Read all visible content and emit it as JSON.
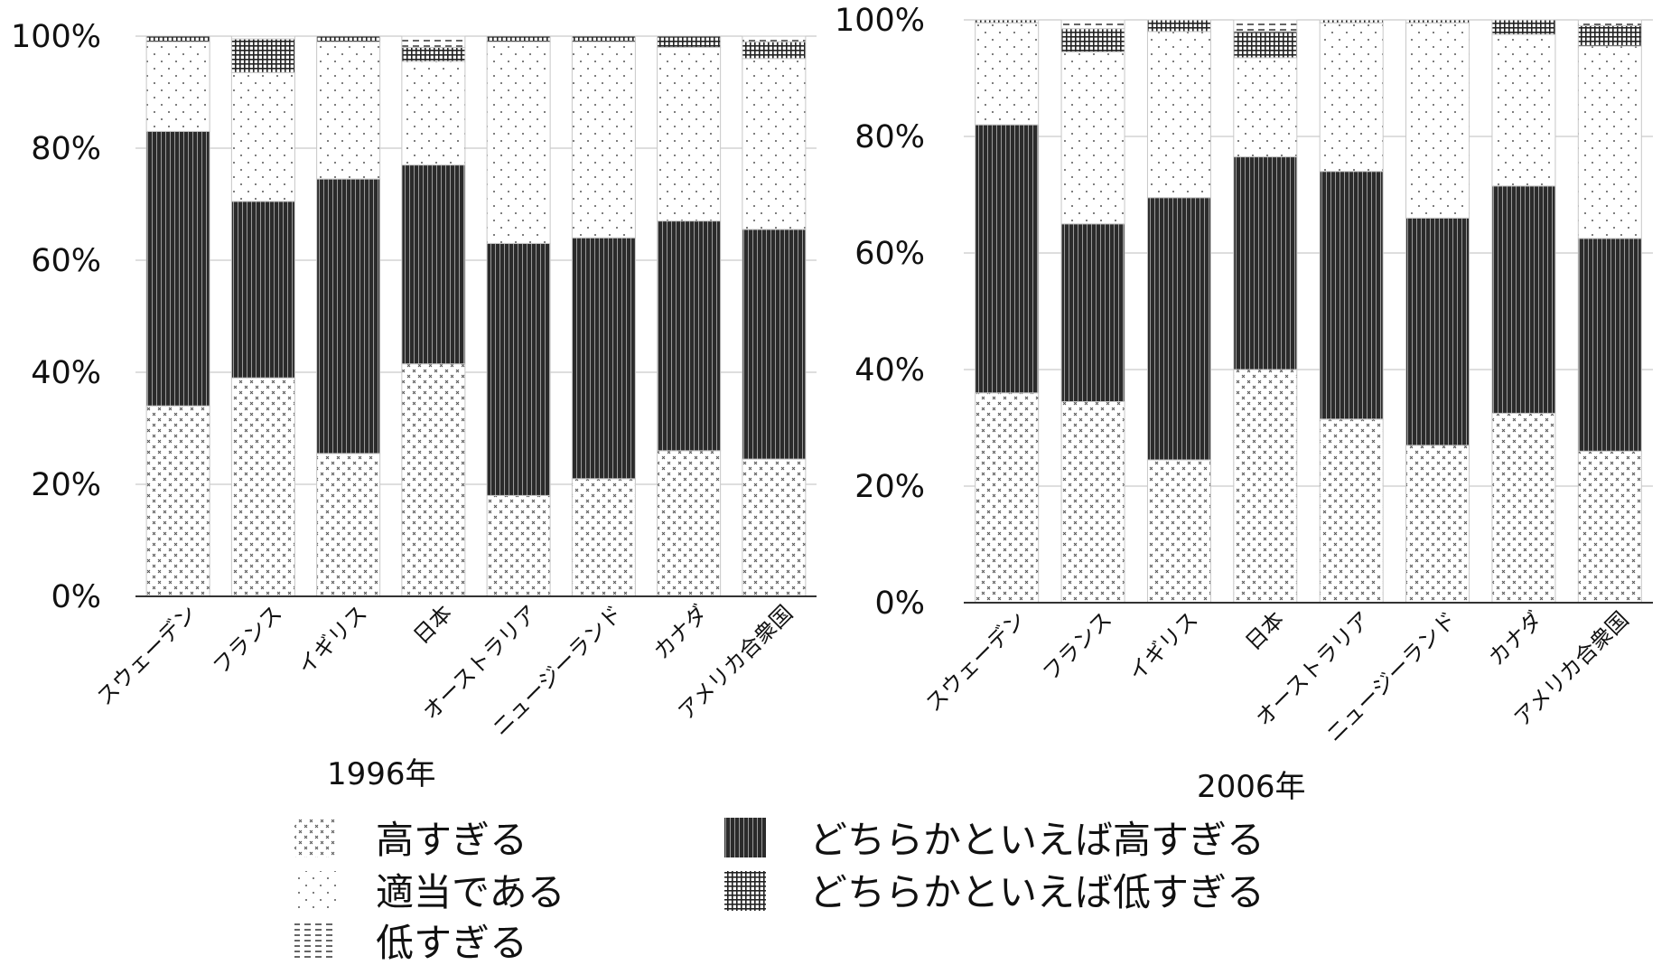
{
  "legend": [
    {
      "key": "too_high",
      "label": "高すぎる",
      "pattern": "cross"
    },
    {
      "key": "rather_high",
      "label": "どちらかといえば高すぎる",
      "pattern": "vlines"
    },
    {
      "key": "appropriate",
      "label": "適当である",
      "pattern": "dots"
    },
    {
      "key": "rather_low",
      "label": "どちらかといえば低すぎる",
      "pattern": "grid"
    },
    {
      "key": "too_low",
      "label": "低すぎる",
      "pattern": "dash"
    }
  ],
  "chart_data": [
    {
      "type": "bar",
      "stacked": true,
      "title": "1996年",
      "categories": [
        "スウェーデン",
        "フランス",
        "イギリス",
        "日本",
        "オーストラリア",
        "ニュージーランド",
        "カナダ",
        "アメリカ合衆国"
      ],
      "y_ticks": [
        "0%",
        "20%",
        "40%",
        "60%",
        "80%",
        "100%"
      ],
      "ylim": [
        0,
        100
      ],
      "series": [
        {
          "name": "高すぎる",
          "pattern": "cross",
          "values": [
            34,
            39,
            25.5,
            41.5,
            18,
            21,
            26,
            24.5
          ]
        },
        {
          "name": "どちらかといえば高すぎる",
          "pattern": "vlines",
          "values": [
            49,
            31.5,
            49,
            35.5,
            45,
            43,
            41,
            41
          ]
        },
        {
          "name": "適当である",
          "pattern": "dots",
          "values": [
            16,
            23,
            24.5,
            18.5,
            36,
            35,
            31,
            30.5
          ]
        },
        {
          "name": "どちらかといえば低すぎる",
          "pattern": "grid",
          "values": [
            1,
            6,
            1,
            2.5,
            1,
            1,
            2,
            3
          ]
        },
        {
          "name": "低すぎる",
          "pattern": "dash",
          "values": [
            0,
            0.5,
            0,
            2,
            0,
            0,
            0,
            1
          ]
        }
      ]
    },
    {
      "type": "bar",
      "stacked": true,
      "title": "2006年",
      "categories": [
        "スウェーデン",
        "フランス",
        "イギリス",
        "日本",
        "オーストラリア",
        "ニュージーランド",
        "カナダ",
        "アメリカ合衆国"
      ],
      "y_ticks": [
        "0%",
        "20%",
        "40%",
        "60%",
        "80%",
        "100%"
      ],
      "ylim": [
        0,
        100
      ],
      "series": [
        {
          "name": "高すぎる",
          "pattern": "cross",
          "values": [
            36,
            34.5,
            24.5,
            40,
            31.5,
            27,
            32.5,
            26
          ]
        },
        {
          "name": "どちらかといえば高すぎる",
          "pattern": "vlines",
          "values": [
            46,
            30.5,
            45,
            36.5,
            42.5,
            39,
            39,
            36.5
          ]
        },
        {
          "name": "適当である",
          "pattern": "dots",
          "values": [
            17.5,
            29.5,
            28.5,
            17,
            25.5,
            33.5,
            26,
            33
          ]
        },
        {
          "name": "どちらかといえば低すぎる",
          "pattern": "grid",
          "values": [
            0.5,
            4,
            2,
            4.5,
            0.5,
            0.5,
            2.5,
            3.5
          ]
        },
        {
          "name": "低すぎる",
          "pattern": "dash",
          "values": [
            0,
            1.5,
            0,
            2,
            0,
            0,
            0,
            1
          ]
        }
      ]
    }
  ]
}
